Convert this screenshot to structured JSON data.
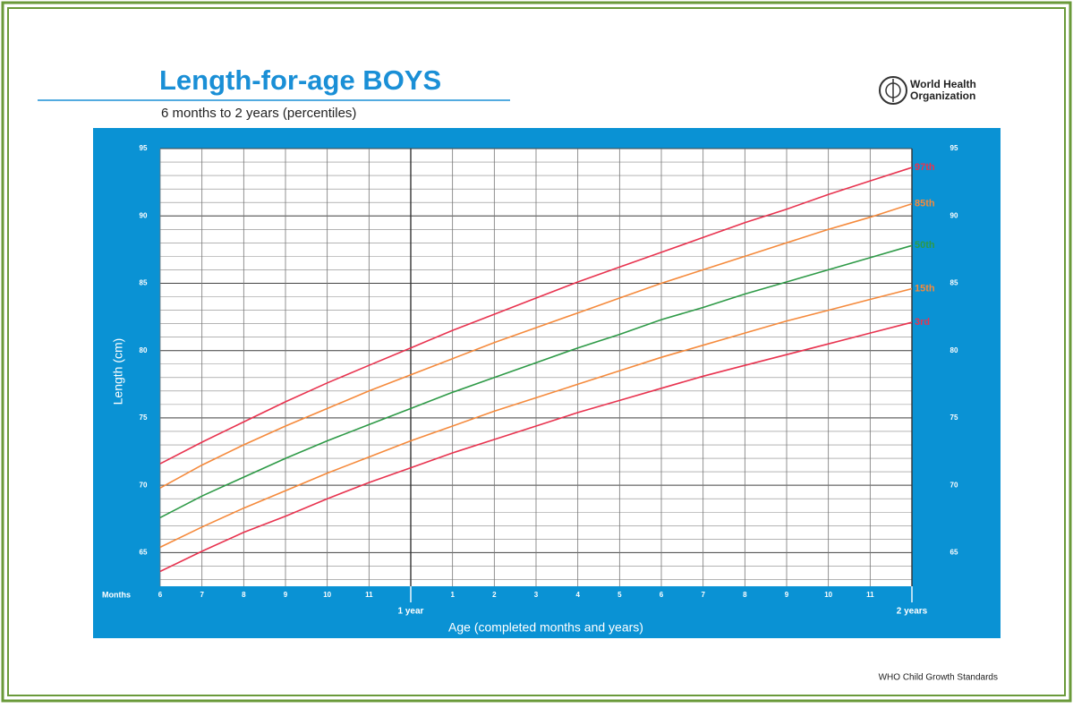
{
  "chart_data": {
    "type": "line",
    "title": "Length-for-age BOYS",
    "subtitle": "6 months to 2 years (percentiles)",
    "logo": [
      "World Health",
      "Organization"
    ],
    "footer": "WHO Child Growth Standards",
    "ylabel": "Length (cm)",
    "xlabel": "Age (completed months and years)",
    "xunit_label": "Months",
    "x": [
      6,
      7,
      8,
      9,
      10,
      11,
      12,
      13,
      14,
      15,
      16,
      17,
      18,
      19,
      20,
      21,
      22,
      23,
      24
    ],
    "xlim": [
      6,
      24
    ],
    "xticks": [
      6,
      7,
      8,
      9,
      10,
      11,
      {
        "value": 13,
        "label": "1"
      },
      {
        "value": 14,
        "label": "2"
      },
      {
        "value": 15,
        "label": "3"
      },
      {
        "value": 16,
        "label": "4"
      },
      {
        "value": 17,
        "label": "5"
      },
      {
        "value": 18,
        "label": "6"
      },
      {
        "value": 19,
        "label": "7"
      },
      {
        "value": 20,
        "label": "8"
      },
      {
        "value": 21,
        "label": "9"
      },
      {
        "value": 22,
        "label": "10"
      },
      {
        "value": 23,
        "label": "11"
      }
    ],
    "xticks_years": [
      {
        "value": 12,
        "label": "1 year"
      },
      {
        "value": 24,
        "label": "2 years"
      }
    ],
    "ylim": [
      62.5,
      95
    ],
    "yticks": [
      65,
      70,
      75,
      80,
      85,
      90,
      95
    ],
    "y_minor_step": 1,
    "grid": true,
    "series": [
      {
        "name": "97th",
        "color": "#e8334f",
        "values": [
          71.6,
          73.2,
          74.7,
          76.2,
          77.6,
          78.9,
          80.2,
          81.5,
          82.7,
          83.9,
          85.1,
          86.2,
          87.3,
          88.4,
          89.5,
          90.5,
          91.6,
          92.6,
          93.6
        ]
      },
      {
        "name": "85th",
        "color": "#f58a3c",
        "values": [
          69.8,
          71.5,
          73.0,
          74.4,
          75.7,
          77.0,
          78.2,
          79.4,
          80.6,
          81.7,
          82.8,
          83.9,
          85.0,
          86.0,
          87.0,
          88.0,
          89.0,
          89.9,
          90.9
        ]
      },
      {
        "name": "50th",
        "color": "#2e9a47",
        "values": [
          67.6,
          69.2,
          70.6,
          72.0,
          73.3,
          74.5,
          75.7,
          76.9,
          78.0,
          79.1,
          80.2,
          81.2,
          82.3,
          83.2,
          84.2,
          85.1,
          86.0,
          86.9,
          87.8
        ]
      },
      {
        "name": "15th",
        "color": "#f58a3c",
        "values": [
          65.4,
          66.9,
          68.3,
          69.6,
          70.9,
          72.1,
          73.3,
          74.4,
          75.5,
          76.5,
          77.5,
          78.5,
          79.5,
          80.4,
          81.3,
          82.2,
          83.0,
          83.8,
          84.6
        ]
      },
      {
        "name": "3rd",
        "color": "#e8334f",
        "values": [
          63.6,
          65.1,
          66.5,
          67.7,
          69.0,
          70.2,
          71.3,
          72.4,
          73.4,
          74.4,
          75.4,
          76.3,
          77.2,
          78.1,
          78.9,
          79.7,
          80.5,
          81.3,
          82.1
        ]
      }
    ]
  }
}
